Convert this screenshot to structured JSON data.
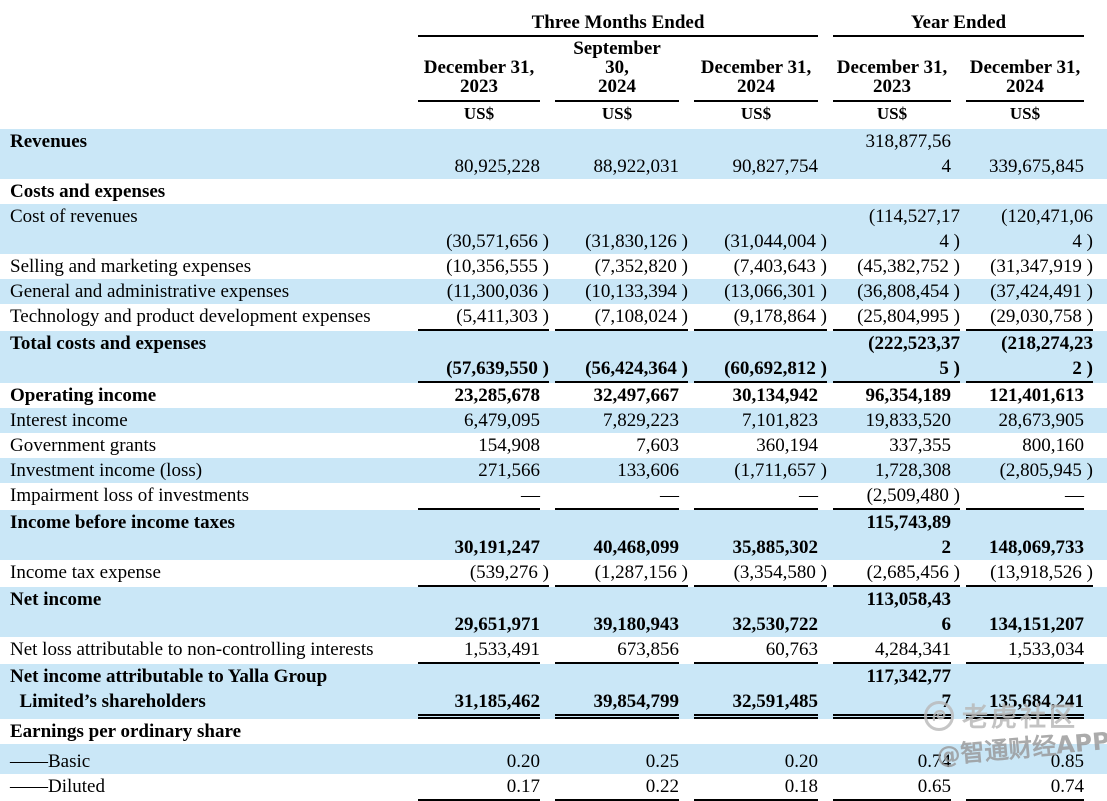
{
  "colors": {
    "row_stripe": "#cae7f7",
    "rule": "#000000",
    "watermark_gray": "#b8b8b8"
  },
  "watermarks": {
    "community": "老虎社区",
    "source": "@智通财经APP",
    "logo_icon": "tiger-circle-logo"
  },
  "table": {
    "groups": [
      {
        "label": "Three Months Ended"
      },
      {
        "label": "Year Ended"
      }
    ],
    "columns": [
      "December 31,\n2023",
      "September\n30,\n2024",
      "December 31,\n2024",
      "December 31,\n2023",
      "December 31,\n2024"
    ],
    "currency": "US$",
    "rows": [
      {
        "label": "Revenues",
        "bold": true,
        "boldValues": false,
        "shade": "blue",
        "underline": "none",
        "cells": [
          "80,925,228",
          "88,922,031",
          "90,827,754",
          "318,877,56\n4",
          "339,675,845"
        ]
      },
      {
        "label": "Costs and expenses",
        "bold": true,
        "boldValues": false,
        "shade": "white",
        "underline": "none",
        "cells": [
          "",
          "",
          "",
          "",
          ""
        ]
      },
      {
        "label": "Cost of revenues",
        "bold": false,
        "boldValues": false,
        "shade": "blue",
        "underline": "none",
        "cells": [
          "(30,571,656 )",
          "(31,830,126 )",
          "(31,044,004 )",
          "(114,527,17\n4 )",
          "(120,471,06\n4 )"
        ]
      },
      {
        "label": "Selling and marketing expenses",
        "bold": false,
        "boldValues": false,
        "shade": "white",
        "underline": "none",
        "cells": [
          "(10,356,555 )",
          "(7,352,820 )",
          "(7,403,643 )",
          "(45,382,752 )",
          "(31,347,919 )"
        ]
      },
      {
        "label": "General and administrative expenses",
        "bold": false,
        "boldValues": false,
        "shade": "blue",
        "underline": "none",
        "cells": [
          "(11,300,036 )",
          "(10,133,394 )",
          "(13,066,301 )",
          "(36,808,454 )",
          "(37,424,491 )"
        ]
      },
      {
        "label": "Technology and product development expenses",
        "bold": false,
        "boldValues": false,
        "shade": "white",
        "underline": "single",
        "cells": [
          "(5,411,303 )",
          "(7,108,024 )",
          "(9,178,864 )",
          "(25,804,995 )",
          "(29,030,758 )"
        ]
      },
      {
        "label": "Total costs and expenses",
        "bold": true,
        "boldValues": true,
        "shade": "blue",
        "underline": "single",
        "cells": [
          "(57,639,550 )",
          "(56,424,364 )",
          "(60,692,812 )",
          "(222,523,37\n5 )",
          "(218,274,23\n2 )"
        ]
      },
      {
        "label": "Operating income",
        "bold": true,
        "boldValues": true,
        "shade": "white",
        "underline": "none",
        "cells": [
          "23,285,678",
          "32,497,667",
          "30,134,942",
          "96,354,189",
          "121,401,613"
        ]
      },
      {
        "label": "Interest income",
        "bold": false,
        "boldValues": false,
        "shade": "blue",
        "underline": "none",
        "cells": [
          "6,479,095",
          "7,829,223",
          "7,101,823",
          "19,833,520",
          "28,673,905"
        ]
      },
      {
        "label": "Government grants",
        "bold": false,
        "boldValues": false,
        "shade": "white",
        "underline": "none",
        "cells": [
          "154,908",
          "7,603",
          "360,194",
          "337,355",
          "800,160"
        ]
      },
      {
        "label": "Investment income (loss)",
        "bold": false,
        "boldValues": false,
        "shade": "blue",
        "underline": "none",
        "cells": [
          "271,566",
          "133,606",
          "(1,711,657 )",
          "1,728,308",
          "(2,805,945 )"
        ]
      },
      {
        "label": "Impairment loss of investments",
        "bold": false,
        "boldValues": false,
        "shade": "white",
        "underline": "single",
        "cells": [
          "—",
          "—",
          "—",
          "(2,509,480 )",
          "—"
        ]
      },
      {
        "label": "Income before income taxes",
        "bold": true,
        "boldValues": true,
        "shade": "blue",
        "underline": "none",
        "cells": [
          "30,191,247",
          "40,468,099",
          "35,885,302",
          "115,743,89\n2",
          "148,069,733"
        ]
      },
      {
        "label": "Income tax expense",
        "bold": false,
        "boldValues": false,
        "shade": "white",
        "underline": "single",
        "cells": [
          "(539,276 )",
          "(1,287,156 )",
          "(3,354,580 )",
          "(2,685,456 )",
          "(13,918,526 )"
        ]
      },
      {
        "label": "Net income",
        "bold": true,
        "boldValues": true,
        "shade": "blue",
        "underline": "none",
        "cells": [
          "29,651,971",
          "39,180,943",
          "32,530,722",
          "113,058,43\n6",
          "134,151,207"
        ]
      },
      {
        "label": "Net loss attributable to non-controlling interests",
        "bold": false,
        "boldValues": false,
        "shade": "white",
        "underline": "single",
        "cells": [
          "1,533,491",
          "673,856",
          "60,763",
          "4,284,341",
          "1,533,034"
        ]
      },
      {
        "label": "Net income attributable to Yalla Group\n  Limited’s shareholders",
        "bold": true,
        "boldValues": true,
        "shade": "blue",
        "underline": "double",
        "cells": [
          "31,185,462",
          "39,854,799",
          "32,591,485",
          "117,342,77\n7",
          "135,684,241"
        ]
      },
      {
        "label": "Earnings per ordinary share",
        "bold": true,
        "boldValues": false,
        "shade": "white",
        "underline": "none",
        "cells": [
          "",
          "",
          "",
          "",
          ""
        ]
      },
      {
        "label": "——Basic",
        "bold": false,
        "boldValues": false,
        "shade": "blue",
        "underline": "none",
        "cells": [
          "0.20",
          "0.25",
          "0.20",
          "0.74",
          "0.85"
        ]
      },
      {
        "label": "——Diluted",
        "bold": false,
        "boldValues": false,
        "shade": "white",
        "underline": "single",
        "cells": [
          "0.17",
          "0.22",
          "0.18",
          "0.65",
          "0.74"
        ]
      }
    ]
  }
}
